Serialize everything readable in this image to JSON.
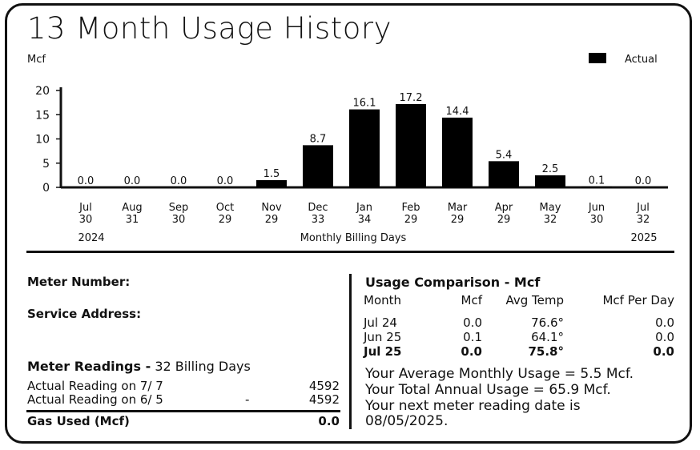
{
  "page": {
    "title": "13 Month Usage History"
  },
  "chart_data": {
    "type": "bar",
    "unit_label": "Mcf",
    "legend": [
      {
        "label": "Actual",
        "color": "#000000"
      }
    ],
    "legend_position": "top-right",
    "ylim": [
      0,
      20
    ],
    "yticks": [
      0,
      5,
      10,
      15,
      20
    ],
    "categories": [
      "Jul",
      "Aug",
      "Sep",
      "Oct",
      "Nov",
      "Dec",
      "Jan",
      "Feb",
      "Mar",
      "Apr",
      "May",
      "Jun",
      "Jul"
    ],
    "billing_days": [
      "30",
      "31",
      "30",
      "29",
      "29",
      "33",
      "34",
      "29",
      "29",
      "29",
      "32",
      "30",
      "32"
    ],
    "values": [
      0.0,
      0.0,
      0.0,
      0.0,
      1.5,
      8.7,
      16.1,
      17.2,
      14.4,
      5.4,
      2.5,
      0.1,
      0.0
    ],
    "value_labels": [
      "0.0",
      "0.0",
      "0.0",
      "0.0",
      "1.5",
      "8.7",
      "16.1",
      "17.2",
      "14.4",
      "5.4",
      "2.5",
      "0.1",
      "0.0"
    ],
    "year_start": "2024",
    "year_end": "2025",
    "xlabel": "Monthly Billing Days",
    "bar_color": "#000000"
  },
  "meter": {
    "number_label": "Meter Number:",
    "address_label": "Service Address:",
    "readings_label": "Meter Readings -",
    "readings_days": "32 Billing Days",
    "reading1_label": "Actual Reading on  7/ 7",
    "reading1_value": "4592",
    "reading2_label": "Actual Reading on  6/ 5",
    "reading2_dash": "-",
    "reading2_value": "4592",
    "gas_label": "Gas Used (Mcf)",
    "gas_value": "0.0"
  },
  "comparison": {
    "title": "Usage Comparison - Mcf",
    "headers": [
      "Month",
      "Mcf",
      "Avg Temp",
      "Mcf Per Day"
    ],
    "rows": [
      [
        "Jul 24",
        "0.0",
        "76.6°",
        "0.0"
      ],
      [
        "Jun 25",
        "0.1",
        "64.1°",
        "0.0"
      ],
      [
        "Jul 25",
        "0.0",
        "75.8°",
        "0.0"
      ]
    ],
    "summary": [
      "Your Average Monthly Usage = 5.5 Mcf.",
      "Your Total Annual Usage = 65.9 Mcf.",
      "Your next meter reading date is",
      "08/05/2025."
    ]
  }
}
